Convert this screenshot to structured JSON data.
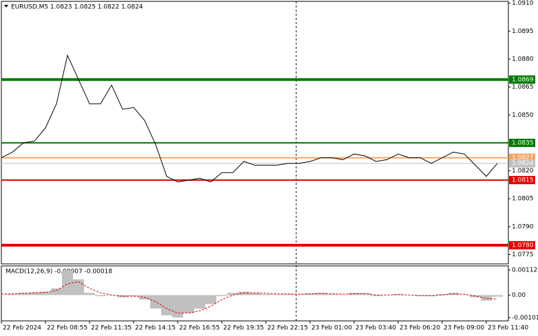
{
  "chart_data": [
    {
      "type": "line",
      "title": "EURUSD,M5  1.0823 1.0825 1.0822 1.0824",
      "xlim": [
        0,
        46
      ],
      "ylim": [
        1.077,
        1.0911
      ],
      "yticks": [
        {
          "value": 1.091,
          "label": "1.0910"
        },
        1.0895,
        {
          "value": 1.088,
          "label": "1.0880"
        },
        1.0865,
        {
          "value": 1.085,
          "label": "1.0850"
        },
        {
          "value": 1.082,
          "label": "1.0820"
        },
        1.0805,
        {
          "value": 1.079,
          "label": "1.0790"
        },
        1.0775
      ],
      "series": [
        {
          "color": "#000000",
          "values": [
            1.0827,
            1.083,
            1.0835,
            1.0836,
            1.0843,
            1.0856,
            1.0882,
            1.0869,
            1.0856,
            1.0856,
            1.0866,
            1.0853,
            1.0854,
            1.0847,
            1.0834,
            1.0817,
            1.0814,
            1.0815,
            1.0816,
            1.0814,
            1.0819,
            1.0819,
            1.0825,
            1.0823,
            1.0823,
            1.0823,
            1.0824,
            1.0824,
            1.0825,
            1.0827,
            1.0827,
            1.0826,
            1.0829,
            1.0828,
            1.0825,
            1.0826,
            1.0829,
            1.0827,
            1.0827,
            1.0824,
            1.0827,
            1.083,
            1.0829,
            1.0823,
            1.0817,
            1.0824
          ]
        }
      ],
      "levels": [
        {
          "value": 1.0869,
          "color": "#007a00",
          "thick": true
        },
        {
          "value": 1.0835,
          "color": "#007a00",
          "thick": false
        },
        {
          "value": 1.0827,
          "color": "#f4a460",
          "thick": false
        },
        {
          "value": 1.0824,
          "color": "#c0c0c0",
          "thick": false
        },
        {
          "value": 1.0815,
          "color": "#e00000",
          "thick": false
        },
        {
          "value": {
            "value": 1.078,
            "label": "1.0780"
          },
          "color": "#e00000",
          "thick": true
        }
      ]
    },
    {
      "type": "macd",
      "title": "MACD(12,26,9) -0.00007 -0.00018",
      "xlim": [
        0,
        46
      ],
      "ylim": [
        -0.00115,
        0.0013
      ],
      "yticks": [
        0.00112,
        {
          "value": 0,
          "label": "0.00"
        },
        -0.00101
      ],
      "xticks": [
        {
          "value": 0,
          "label": "22 Feb 2024"
        },
        {
          "value": 4,
          "label": "22 Feb 08:55"
        },
        {
          "value": 8,
          "label": "22 Feb 11:35"
        },
        {
          "value": 12,
          "label": "22 Feb 14:15"
        },
        {
          "value": 16,
          "label": "22 Feb 16:55"
        },
        {
          "value": 20,
          "label": "22 Feb 19:35"
        },
        {
          "value": 24,
          "label": "22 Feb 22:15"
        },
        {
          "value": 28,
          "label": "23 Feb 01:00"
        },
        {
          "value": 32,
          "label": "23 Feb 03:40"
        },
        {
          "value": 36,
          "label": "23 Feb 06:20"
        },
        {
          "value": 40,
          "label": "23 Feb 09:00"
        },
        {
          "value": 44,
          "label": "23 Feb 11:40"
        }
      ],
      "series": [
        {
          "color": "#c0c0c0",
          "values": [
            2e-05,
            5e-05,
            0.0001,
            0.00012,
            0.00015,
            0.0003,
            0.0011,
            0.0007,
            0.0001,
            -5e-05,
            -2e-05,
            -0.0001,
            -5e-05,
            -0.0002,
            -0.0006,
            -0.0009,
            -0.001,
            -0.0008,
            -0.0006,
            -0.0004,
            -5e-05,
            0.0001,
            0.00015,
            0.0001,
            5e-05,
            3e-05,
            5e-05,
            3e-05,
            8e-05,
            0.0001,
            5e-05,
            2e-05,
            0.0001,
            8e-05,
            -5e-05,
            0,
            5e-05,
            0,
            -5e-05,
            -5e-05,
            5e-05,
            0.0001,
            2e-05,
            -0.0001,
            -0.00025,
            -7e-05
          ]
        },
        {
          "color": "#e00000",
          "values": [
            5e-05,
            5e-05,
            8e-05,
            0.0001,
            0.00012,
            0.0002,
            0.0005,
            0.0006,
            0.0003,
            0.0001,
            0,
            -5e-05,
            -5e-05,
            -0.0001,
            -0.0003,
            -0.0006,
            -0.0008,
            -0.0008,
            -0.0007,
            -0.0005,
            -0.0002,
            0,
            0.0001,
            0.0001,
            8e-05,
            5e-05,
            5e-05,
            4e-05,
            5e-05,
            8e-05,
            6e-05,
            4e-05,
            6e-05,
            7e-05,
            0,
            0,
            2e-05,
            0,
            -2e-05,
            -3e-05,
            0,
            6e-05,
            4e-05,
            -4e-05,
            -0.00015,
            -0.00018
          ]
        }
      ]
    }
  ]
}
